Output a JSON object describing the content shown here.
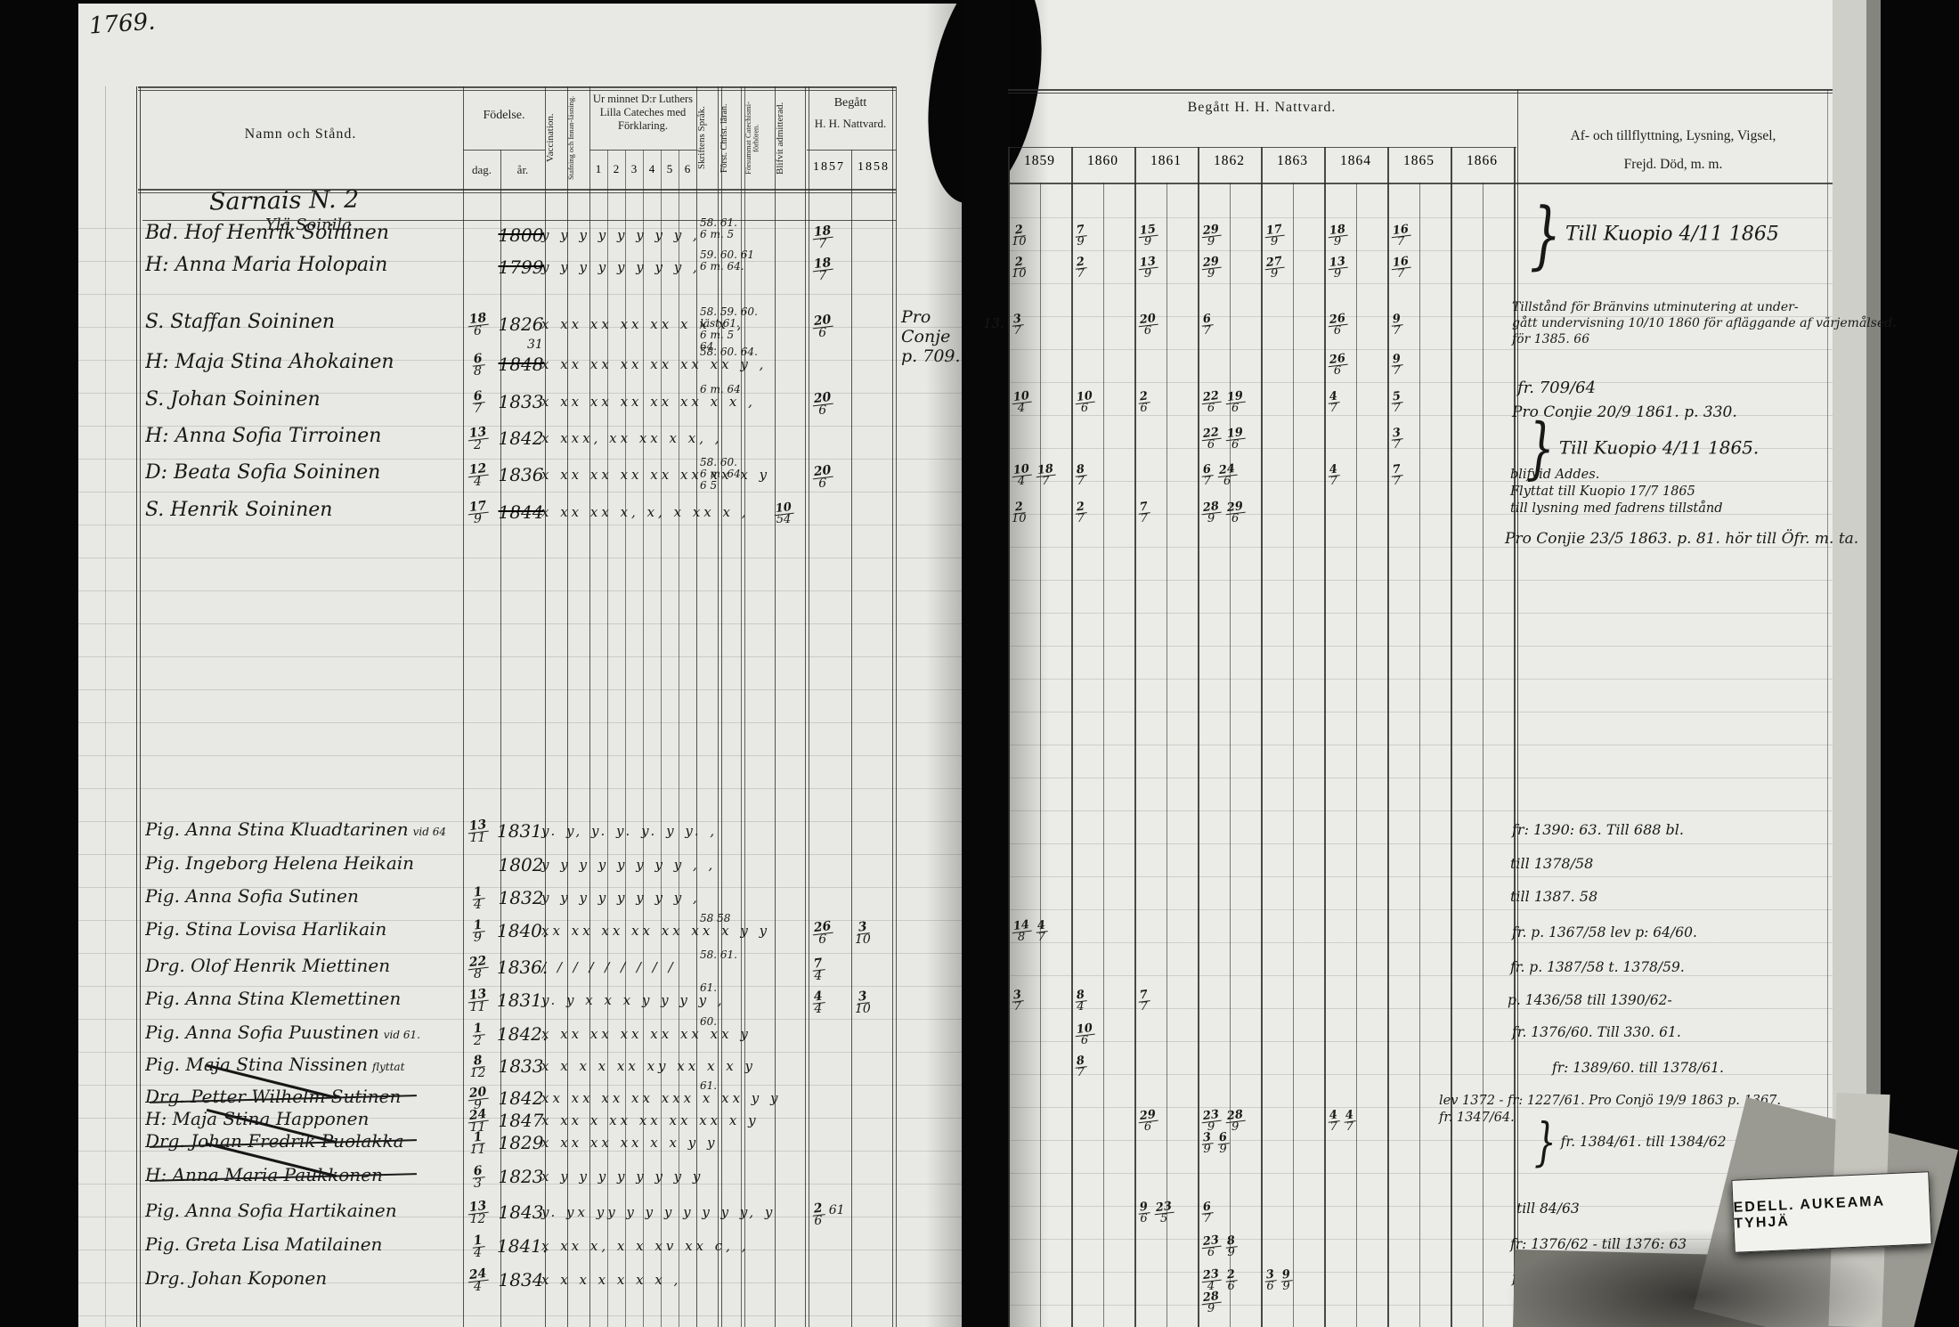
{
  "photo": {
    "page_number": "1769."
  },
  "left_page": {
    "header": {
      "namn": "Namn och Stånd.",
      "fodelse": "Födelse.",
      "dag": "dag.",
      "ar": "år.",
      "vaccination": "Vaccination.",
      "stafning": "Stafning och Innan-läsning.",
      "cateches_title": "Ur minnet D:r Luthers Lilla Cateches med Förklaring.",
      "cateches_cols": [
        "1",
        "2",
        "3",
        "4",
        "5",
        "6"
      ],
      "skriftens": "Skriftens Språk.",
      "forst_christ": "Först. Christ. läran.",
      "forsummat": "Försummat Catechismi-förhören.",
      "blifvit": "Blifvit admitterad.",
      "begatt": "Begått",
      "nattvard": "H. H. Nattvard.",
      "years": [
        "1857",
        "1858"
      ]
    },
    "village_title": "Sarnais N. 2",
    "hamlet_title": "Ylä Soinila",
    "rows": [
      {
        "prefix": "Bd.",
        "name": "Hof Henrik Soininen",
        "birth_day": "",
        "birth_year": "1800",
        "year_struck": true,
        "marks": "y y y y y y y y ,",
        "skrift_notes": [
          "58. 61.",
          "6 m. 5"
        ],
        "natt_1857": "18/7",
        "natt_1858": "",
        "right": [
          "2/10",
          "7/9",
          "15/9",
          "29/9",
          "17/9",
          "18/9",
          "16/7",
          ""
        ]
      },
      {
        "prefix": "H:",
        "name": "Anna Maria Holopain",
        "birth_day": "",
        "birth_year": "1799",
        "year_struck": true,
        "marks": "y y y y y y y y ,",
        "skrift_notes": [
          "59. 60. 61",
          "6 m. 64."
        ],
        "natt_1857": "18/7",
        "right": [
          "2/10",
          "2/7",
          "13/9",
          "29/9",
          "27/9",
          "13/9",
          "16/7",
          ""
        ]
      },
      {
        "prefix": "S.",
        "name": "Staffan Soininen",
        "birth_day": "18/6",
        "birth_year": "1826",
        "marks": "x xx xx xx xx x x x ,",
        "skrift_notes": [
          "58. 59. 60.",
          "läst 61.",
          "6 m. 5",
          "64."
        ],
        "natt_1857": "20/6",
        "margin_note": [
          "Pro Conje",
          "p. 709."
        ],
        "right_margin": "13.",
        "right": [
          "3/7",
          "",
          "20/6",
          "6/7",
          "",
          "26/6",
          "9/7",
          ""
        ]
      },
      {
        "prefix": "H:",
        "name": "Maja Stina Ahokainen",
        "birth_day": "6/8",
        "birth_year": "1848",
        "year_struck": true,
        "year_fix": "31",
        "marks": "x xx xx xx xx xx xx y ,",
        "skrift_notes": [
          "58. 60. 64."
        ],
        "right": [
          "",
          "",
          "",
          "",
          "",
          "26/6",
          "9/7",
          ""
        ]
      },
      {
        "prefix": "S.",
        "name": "Johan Soininen",
        "birth_day": "6/7",
        "birth_year": "1833",
        "marks": "x xx xx xx xx xx x x ,",
        "skrift_notes": [
          "6 m. 64"
        ],
        "natt_1857": "20/6",
        "right": [
          "10/4",
          "10/6",
          "2/6",
          "22/6 19/6",
          "",
          "4/7",
          "5/7",
          ""
        ]
      },
      {
        "prefix": "H:",
        "name": "Anna Sofia Tirroinen",
        "birth_day": "13/2",
        "birth_year": "1842",
        "marks": "x xxx, xx xx x x, ,",
        "right": [
          "",
          "",
          "",
          "22/6 19/6",
          "",
          "",
          "3/7",
          ""
        ]
      },
      {
        "prefix": "D:",
        "name": "Beata Sofia Soininen",
        "birth_day": "12/4",
        "birth_year": "1836",
        "marks": "x xx xx xx xx xx xx x y",
        "skrift_notes": [
          "58. 60.",
          "6 m. 64",
          "6 5"
        ],
        "natt_1857": "20/6",
        "right": [
          "10/4 18/7",
          "8/7",
          "",
          "6/7 24/6",
          "",
          "4/7",
          "7/7",
          ""
        ]
      },
      {
        "prefix": "S.",
        "name": "Henrik Soininen",
        "birth_day": "17/9",
        "birth_year": "1844",
        "year_struck": true,
        "marks": "x xx xx x, x, x xx x ,",
        "admit": "10/54",
        "right": [
          "2/10",
          "2/7",
          "7/7",
          "28/9 29/6",
          "",
          "",
          "",
          ""
        ]
      },
      {
        "prefix": "Pig.",
        "name": "Anna Stina Kluadtarinen",
        "name_suffix": "vid 64",
        "birth_day": "13/11",
        "birth_year": "1831.",
        "marks": "y. y, y. y. y. y y. ,"
      },
      {
        "prefix": "Pig.",
        "name": "Ingeborg Helena Heikain",
        "birth_day": "",
        "birth_year": "1802",
        "marks": "y y y y y y y y , ,"
      },
      {
        "prefix": "Pig.",
        "name": "Anna Sofia Sutinen",
        "birth_day": "1/4",
        "birth_year": "1832",
        "marks": "y y y y y y y y ,"
      },
      {
        "prefix": "Pig.",
        "name": "Stina Lovisa Harlikain",
        "birth_day": "1/9",
        "birth_year": "1840.",
        "marks": "xx xx xx xx xx xx x y y",
        "skrift_notes": [
          "58    58"
        ],
        "natt_1857": "26/6",
        "natt_1858": "3/10",
        "right": [
          "14/8 4/7",
          "",
          "",
          "",
          "",
          "",
          "",
          ""
        ]
      },
      {
        "prefix": "Drg.",
        "name": "Olof Henrik Miettinen",
        "birth_day": "22/8",
        "birth_year": "1836.",
        "marks": "/ / / / / / / / /",
        "skrift_notes": [
          "58. 61."
        ],
        "natt_1857": "7/4"
      },
      {
        "prefix": "Pig.",
        "name": "Anna Stina Klemettinen",
        "birth_day": "13/11",
        "birth_year": "1831.",
        "marks": "y. y x x x y y y y ,",
        "skrift_notes": [
          "61."
        ],
        "natt_1857": "4/4",
        "natt_1858": "3/10",
        "right": [
          "3/7",
          "8/4",
          "7/7",
          "",
          "",
          "",
          "",
          ""
        ]
      },
      {
        "prefix": "Pig.",
        "name": "Anna Sofia Puustinen",
        "name_suffix": "vid 61.",
        "birth_day": "1/2",
        "birth_year": "1842.",
        "marks": "x xx xx xx xx xx xx y",
        "skrift_notes": [
          "60."
        ],
        "right": [
          "",
          "10/6",
          "",
          "",
          "",
          "",
          "",
          ""
        ]
      },
      {
        "prefix": "Pig.",
        "name": "Maja Stina Nissinen",
        "name_suffix": "flyttat",
        "birth_day": "8/12",
        "birth_year": "1833",
        "marks": "x x x x xx xy xx x x y",
        "right": [
          "",
          "8/7",
          "",
          "",
          "",
          "",
          "",
          ""
        ]
      },
      {
        "prefix": "Drg.",
        "name": "Petter Wilhelm Sutinen",
        "name_struck": true,
        "birth_day": "20/9",
        "birth_year": "1842",
        "marks": "xx xx xx xx xxx x xx y y",
        "skrift_notes": [
          "61."
        ]
      },
      {
        "prefix": "H:",
        "name": "Maja Stina Happonen",
        "birth_day": "24/11",
        "birth_year": "1847",
        "marks": "x xx x xx xx xx xx x y",
        "right": [
          "",
          "",
          "29/6",
          "23/9 28/9",
          "",
          "4/7 4/7",
          "",
          ""
        ]
      },
      {
        "prefix": "Drg.",
        "name": "Johan Fredrik Puolakka",
        "name_struck": true,
        "birth_day": "1/11",
        "birth_year": "1829",
        "marks": "x xx xx xx x x y y",
        "right": [
          "",
          "",
          "",
          "3/9 6/9",
          "",
          "",
          "",
          ""
        ]
      },
      {
        "prefix": "H:",
        "name": "Anna Maria Paukkonen",
        "name_struck": true,
        "birth_day": "6/3",
        "birth_year": "1823",
        "marks": "x y y y y y y y y"
      },
      {
        "prefix": "Pig.",
        "name": "Anna Sofia Hartikainen",
        "birth_day": "13/12",
        "birth_year": "1843",
        "marks": "y. yx yy y y y y y y y, y",
        "natt_1857": "2/6 61",
        "right": [
          "",
          "",
          "9/6 23/5",
          "6/7",
          "",
          "",
          "",
          ""
        ]
      },
      {
        "prefix": "Pig.",
        "name": "Greta Lisa Matilainen",
        "birth_day": "1/4",
        "birth_year": "1841.",
        "marks": "x xx x, x x xv xx c, ,",
        "right": [
          "",
          "",
          "",
          "23/6 8/9",
          "",
          "",
          "",
          ""
        ]
      },
      {
        "prefix": "Drg.",
        "name": "Johan Koponen",
        "birth_day": "24/4",
        "birth_year": "1834",
        "marks": "x x x x x x x ,",
        "right": [
          "",
          "",
          "",
          "23/4 2/6 28/9",
          "3/6 9/9",
          "",
          "",
          ""
        ]
      }
    ]
  },
  "right_page": {
    "nattvard_title": "Begått H. H. Nattvard.",
    "years": [
      "1859",
      "1860",
      "1861",
      "1862",
      "1863",
      "1864",
      "1865",
      "1866"
    ],
    "annotation_title_line1": "Af- och tillflyttning, Lysning, Vigsel,",
    "annotation_title_line2": "Frejd. Död, m. m.",
    "notes": [
      {
        "lines": [
          "Till Kuopio 4/11 1865"
        ],
        "brace": true
      },
      {
        "lines": [
          "Tillstånd för Bränvins utminutering at under-",
          "gått undervisning 10/10 1860 för afläggande af värjemålsed.",
          "för 1385. 66"
        ]
      },
      {
        "lines": [
          "fr. 709/64"
        ]
      },
      {
        "lines": [
          "Pro Conjie 20/9 1861. p. 330."
        ]
      },
      {
        "lines": [
          "Till Kuopio 4/11 1865."
        ],
        "brace": true
      },
      {
        "lines": [
          "blifvid Addes.",
          "Flyttat till Kuopio 17/7 1865",
          "till lysning med fadrens tillstånd"
        ]
      },
      {
        "lines": [
          "Pro Conjie 23/5 1863. p. 81. hör till Öfr. m. ta."
        ]
      },
      {
        "lines": [
          "fr: 1390: 63. Till 688 bl."
        ]
      },
      {
        "lines": [
          "till 1378/58"
        ]
      },
      {
        "lines": [
          "till 1387. 58"
        ]
      },
      {
        "lines": [
          "fr. p. 1367/58 lev p: 64/60."
        ]
      },
      {
        "lines": [
          "fr. p. 1387/58 t. 1378/59."
        ]
      },
      {
        "lines": [
          "p. 1436/58 till 1390/62-"
        ]
      },
      {
        "lines": [
          "fr. 1376/60. Till 330. 61."
        ]
      },
      {
        "lines": [
          "fr: 1389/60. till 1378/61."
        ]
      },
      {
        "lines": [
          "lev 1372 - fr: 1227/61. Pro Conjö 19/9 1863 p. 1367.",
          "fr. 1347/64."
        ]
      },
      {
        "lines": [
          "fr. 1384/61. till 1384/62"
        ],
        "brace": true
      },
      {
        "lines": [
          "till 84/63"
        ]
      },
      {
        "lines": [
          "fr: 1376/62 - till 1376: 63"
        ]
      },
      {
        "lines": [
          "fr. 1382/62"
        ]
      }
    ],
    "sticker_label": "EDELL. AUKEAMA TYHJÄ"
  }
}
